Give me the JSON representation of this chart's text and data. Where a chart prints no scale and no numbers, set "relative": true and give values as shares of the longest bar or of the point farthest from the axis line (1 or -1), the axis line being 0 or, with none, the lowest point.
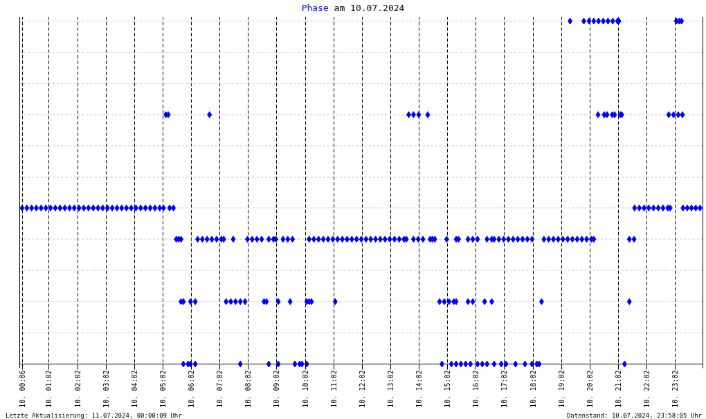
{
  "chart_data": {
    "type": "scatter",
    "title": "am 10.07.2024",
    "relative": true,
    "marker": "diamond",
    "grid": "x",
    "xlim": [
      "2024-07-10T00:00",
      "2024-07-11T00:00"
    ],
    "xticks": [
      {
        "value": "2024-07-10T00:06",
        "label": "10. 00:06"
      },
      {
        "value": "2024-07-10T01:02",
        "label": "10. 01:02"
      },
      {
        "value": "2024-07-10T02:02",
        "label": "10. 02:02"
      },
      {
        "value": "2024-07-10T03:02",
        "label": "10. 03:02"
      },
      {
        "value": "2024-07-10T04:02",
        "label": "10. 04:02"
      },
      {
        "value": "2024-07-10T05:02",
        "label": "10. 05:02"
      },
      {
        "value": "2024-07-10T06:02",
        "label": "10. 06:02"
      },
      {
        "value": "2024-07-10T07:02",
        "label": "10. 07:02"
      },
      {
        "value": "2024-07-10T08:02",
        "label": "10. 08:02"
      },
      {
        "value": "2024-07-10T09:02",
        "label": "10. 09:02"
      },
      {
        "value": "2024-07-10T10:02",
        "label": "10. 10:02"
      },
      {
        "value": "2024-07-10T11:02",
        "label": "10. 11:02"
      },
      {
        "value": "2024-07-10T12:02",
        "label": "10. 12:02"
      },
      {
        "value": "2024-07-10T13:02",
        "label": "10. 13:02"
      },
      {
        "value": "2024-07-10T14:02",
        "label": "10. 14:02"
      },
      {
        "value": "2024-07-10T15:02",
        "label": "10. 15:02"
      },
      {
        "value": "2024-07-10T16:02",
        "label": "10. 16:02"
      },
      {
        "value": "2024-07-10T17:02",
        "label": "10. 17:02"
      },
      {
        "value": "2024-07-10T18:02",
        "label": "10. 18:02"
      },
      {
        "value": "2024-07-10T19:02",
        "label": "10. 19:02"
      },
      {
        "value": "2024-07-10T20:02",
        "label": "10. 20:02"
      },
      {
        "value": "2024-07-10T21:02",
        "label": "10. 21:02"
      },
      {
        "value": "2024-07-10T22:02",
        "label": "10. 22:02"
      },
      {
        "value": "2024-07-10T23:02",
        "label": "10. 23:02"
      }
    ],
    "ref_lines": [
      {
        "axis": "y",
        "value": 0.091,
        "color": "#c0c0c0",
        "line_style": "dotted"
      },
      {
        "axis": "y",
        "value": 0.182,
        "color": "#c0c0c0",
        "line_style": "dotted"
      },
      {
        "axis": "y",
        "value": 0.273,
        "color": "#c0c0c0",
        "line_style": "dotted"
      },
      {
        "axis": "y",
        "value": 0.364,
        "color": "#c0c0c0",
        "line_style": "dotted"
      },
      {
        "axis": "y",
        "value": 0.455,
        "color": "#c0c0c0",
        "line_style": "dotted"
      },
      {
        "axis": "y",
        "value": 0.545,
        "color": "#c0c0c0",
        "line_style": "dotted"
      },
      {
        "axis": "y",
        "value": 0.636,
        "color": "#c0c0c0",
        "line_style": "dotted"
      },
      {
        "axis": "y",
        "value": 0.727,
        "color": "#c0c0c0",
        "line_style": "dotted"
      },
      {
        "axis": "y",
        "value": 0.818,
        "color": "#c0c0c0",
        "line_style": "dotted"
      },
      {
        "axis": "y",
        "value": 0.909,
        "color": "#c0c0c0",
        "line_style": "dotted"
      },
      {
        "axis": "y",
        "value": 1,
        "color": "#c0c0c0",
        "line_style": "dotted"
      }
    ],
    "annotations": [
      "Letzte Aktualisierung: 11.07.2024, 00:00:09 Uhr",
      "Datenstand: 10.07.2024, 23:58:05 Uhr"
    ],
    "series": [
      {
        "name": "Phase",
        "color": "#0000ff",
        "x": [
          "2024-07-10T05:45",
          "2024-07-10T05:55",
          "2024-07-10T06:00",
          "2024-07-10T06:10",
          "2024-07-10T07:45",
          "2024-07-10T08:45",
          "2024-07-10T09:05",
          "2024-07-10T09:40",
          "2024-07-10T09:50",
          "2024-07-10T09:55",
          "2024-07-10T10:05",
          "2024-07-10T14:50",
          "2024-07-10T15:10",
          "2024-07-10T15:20",
          "2024-07-10T15:30",
          "2024-07-10T15:40",
          "2024-07-10T15:50",
          "2024-07-10T16:05",
          "2024-07-10T16:15",
          "2024-07-10T16:25",
          "2024-07-10T16:40",
          "2024-07-10T16:55",
          "2024-07-10T17:05",
          "2024-07-10T17:25",
          "2024-07-10T17:45",
          "2024-07-10T18:00",
          "2024-07-10T18:10",
          "2024-07-10T18:15",
          "2024-07-10T21:15",
          "2024-07-10T05:40",
          "2024-07-10T05:45",
          "2024-07-10T06:00",
          "2024-07-10T06:10",
          "2024-07-10T07:15",
          "2024-07-10T07:25",
          "2024-07-10T07:35",
          "2024-07-10T07:45",
          "2024-07-10T07:55",
          "2024-07-10T08:35",
          "2024-07-10T08:40",
          "2024-07-10T09:05",
          "2024-07-10T09:30",
          "2024-07-10T10:05",
          "2024-07-10T10:10",
          "2024-07-10T10:15",
          "2024-07-10T11:05",
          "2024-07-10T14:45",
          "2024-07-10T14:55",
          "2024-07-10T15:05",
          "2024-07-10T15:15",
          "2024-07-10T15:20",
          "2024-07-10T15:45",
          "2024-07-10T15:55",
          "2024-07-10T16:20",
          "2024-07-10T16:35",
          "2024-07-10T18:20",
          "2024-07-10T21:25",
          "2024-07-10T05:30",
          "2024-07-10T05:35",
          "2024-07-10T05:40",
          "2024-07-10T06:15",
          "2024-07-10T06:25",
          "2024-07-10T06:35",
          "2024-07-10T06:45",
          "2024-07-10T06:55",
          "2024-07-10T07:05",
          "2024-07-10T07:10",
          "2024-07-10T07:30",
          "2024-07-10T08:00",
          "2024-07-10T08:10",
          "2024-07-10T08:20",
          "2024-07-10T08:30",
          "2024-07-10T08:45",
          "2024-07-10T08:55",
          "2024-07-10T09:00",
          "2024-07-10T09:15",
          "2024-07-10T09:25",
          "2024-07-10T09:35",
          "2024-07-10T10:10",
          "2024-07-10T10:20",
          "2024-07-10T10:30",
          "2024-07-10T10:40",
          "2024-07-10T10:50",
          "2024-07-10T11:00",
          "2024-07-10T11:10",
          "2024-07-10T11:20",
          "2024-07-10T11:30",
          "2024-07-10T11:40",
          "2024-07-10T11:50",
          "2024-07-10T12:00",
          "2024-07-10T12:10",
          "2024-07-10T12:20",
          "2024-07-10T12:30",
          "2024-07-10T12:40",
          "2024-07-10T12:50",
          "2024-07-10T13:00",
          "2024-07-10T13:10",
          "2024-07-10T13:20",
          "2024-07-10T13:30",
          "2024-07-10T13:35",
          "2024-07-10T13:50",
          "2024-07-10T14:00",
          "2024-07-10T14:10",
          "2024-07-10T14:25",
          "2024-07-10T14:30",
          "2024-07-10T14:35",
          "2024-07-10T15:00",
          "2024-07-10T15:20",
          "2024-07-10T15:25",
          "2024-07-10T15:45",
          "2024-07-10T15:55",
          "2024-07-10T16:05",
          "2024-07-10T16:25",
          "2024-07-10T16:35",
          "2024-07-10T16:40",
          "2024-07-10T16:50",
          "2024-07-10T17:00",
          "2024-07-10T17:10",
          "2024-07-10T17:20",
          "2024-07-10T17:30",
          "2024-07-10T17:40",
          "2024-07-10T17:50",
          "2024-07-10T18:00",
          "2024-07-10T18:25",
          "2024-07-10T18:35",
          "2024-07-10T18:45",
          "2024-07-10T18:55",
          "2024-07-10T19:05",
          "2024-07-10T19:15",
          "2024-07-10T19:25",
          "2024-07-10T19:35",
          "2024-07-10T19:45",
          "2024-07-10T19:55",
          "2024-07-10T20:05",
          "2024-07-10T20:10",
          "2024-07-10T21:25",
          "2024-07-10T21:35",
          "2024-07-10T00:05",
          "2024-07-10T00:15",
          "2024-07-10T00:25",
          "2024-07-10T00:35",
          "2024-07-10T00:45",
          "2024-07-10T00:55",
          "2024-07-10T01:05",
          "2024-07-10T01:15",
          "2024-07-10T01:25",
          "2024-07-10T01:35",
          "2024-07-10T01:45",
          "2024-07-10T01:55",
          "2024-07-10T02:05",
          "2024-07-10T02:15",
          "2024-07-10T02:25",
          "2024-07-10T02:35",
          "2024-07-10T02:45",
          "2024-07-10T02:55",
          "2024-07-10T03:05",
          "2024-07-10T03:15",
          "2024-07-10T03:25",
          "2024-07-10T03:35",
          "2024-07-10T03:45",
          "2024-07-10T03:55",
          "2024-07-10T04:05",
          "2024-07-10T04:15",
          "2024-07-10T04:25",
          "2024-07-10T04:35",
          "2024-07-10T04:45",
          "2024-07-10T04:55",
          "2024-07-10T05:03",
          "2024-07-10T05:16",
          "2024-07-10T05:24",
          "2024-07-10T21:36",
          "2024-07-10T21:46",
          "2024-07-10T21:56",
          "2024-07-10T22:06",
          "2024-07-10T22:16",
          "2024-07-10T22:26",
          "2024-07-10T22:36",
          "2024-07-10T22:46",
          "2024-07-10T22:51",
          "2024-07-10T23:18",
          "2024-07-10T23:27",
          "2024-07-10T23:36",
          "2024-07-10T23:45",
          "2024-07-10T23:54",
          "2024-07-10T05:08",
          "2024-07-10T05:13",
          "2024-07-10T06:40",
          "2024-07-10T13:40",
          "2024-07-10T13:50",
          "2024-07-10T14:01",
          "2024-07-10T14:20",
          "2024-07-10T20:19",
          "2024-07-10T20:32",
          "2024-07-10T20:38",
          "2024-07-10T20:49",
          "2024-07-10T20:54",
          "2024-07-10T21:06",
          "2024-07-10T21:09",
          "2024-07-10T22:48",
          "2024-07-10T22:58",
          "2024-07-10T23:08",
          "2024-07-10T23:17",
          "2024-07-10T19:20",
          "2024-07-10T19:49",
          "2024-07-10T20:00",
          "2024-07-10T20:10",
          "2024-07-10T20:20",
          "2024-07-10T20:30",
          "2024-07-10T20:40",
          "2024-07-10T20:50",
          "2024-07-10T21:00",
          "2024-07-10T21:03",
          "2024-07-10T23:04",
          "2024-07-10T23:10",
          "2024-07-10T23:15"
        ],
        "values": [
          0,
          0,
          0,
          0,
          0,
          0,
          0,
          0,
          0,
          0,
          0,
          0,
          0,
          0,
          0,
          0,
          0,
          0,
          0,
          0,
          0,
          0,
          0,
          0,
          0,
          0,
          0,
          0,
          0,
          0.182,
          0.182,
          0.182,
          0.182,
          0.182,
          0.182,
          0.182,
          0.182,
          0.182,
          0.182,
          0.182,
          0.182,
          0.182,
          0.182,
          0.182,
          0.182,
          0.182,
          0.182,
          0.182,
          0.182,
          0.182,
          0.182,
          0.182,
          0.182,
          0.182,
          0.182,
          0.182,
          0.182,
          0.364,
          0.364,
          0.364,
          0.364,
          0.364,
          0.364,
          0.364,
          0.364,
          0.364,
          0.364,
          0.364,
          0.364,
          0.364,
          0.364,
          0.364,
          0.364,
          0.364,
          0.364,
          0.364,
          0.364,
          0.364,
          0.364,
          0.364,
          0.364,
          0.364,
          0.364,
          0.364,
          0.364,
          0.364,
          0.364,
          0.364,
          0.364,
          0.364,
          0.364,
          0.364,
          0.364,
          0.364,
          0.364,
          0.364,
          0.364,
          0.364,
          0.364,
          0.364,
          0.364,
          0.364,
          0.364,
          0.364,
          0.364,
          0.364,
          0.364,
          0.364,
          0.364,
          0.364,
          0.364,
          0.364,
          0.364,
          0.364,
          0.364,
          0.364,
          0.364,
          0.364,
          0.364,
          0.364,
          0.364,
          0.364,
          0.364,
          0.364,
          0.364,
          0.364,
          0.364,
          0.364,
          0.364,
          0.364,
          0.364,
          0.364,
          0.364,
          0.364,
          0.364,
          0.364,
          0.364,
          0.455,
          0.455,
          0.455,
          0.455,
          0.455,
          0.455,
          0.455,
          0.455,
          0.455,
          0.455,
          0.455,
          0.455,
          0.455,
          0.455,
          0.455,
          0.455,
          0.455,
          0.455,
          0.455,
          0.455,
          0.455,
          0.455,
          0.455,
          0.455,
          0.455,
          0.455,
          0.455,
          0.455,
          0.455,
          0.455,
          0.455,
          0.455,
          0.455,
          0.455,
          0.455,
          0.455,
          0.455,
          0.455,
          0.455,
          0.455,
          0.455,
          0.455,
          0.455,
          0.455,
          0.455,
          0.455,
          0.455,
          0.727,
          0.727,
          0.727,
          0.727,
          0.727,
          0.727,
          0.727,
          0.727,
          0.727,
          0.727,
          0.727,
          0.727,
          0.727,
          0.727,
          0.727,
          0.727,
          0.727,
          0.727,
          1,
          1,
          1,
          1,
          1,
          1,
          1,
          1,
          1,
          1,
          1,
          1,
          1
        ]
      }
    ]
  }
}
